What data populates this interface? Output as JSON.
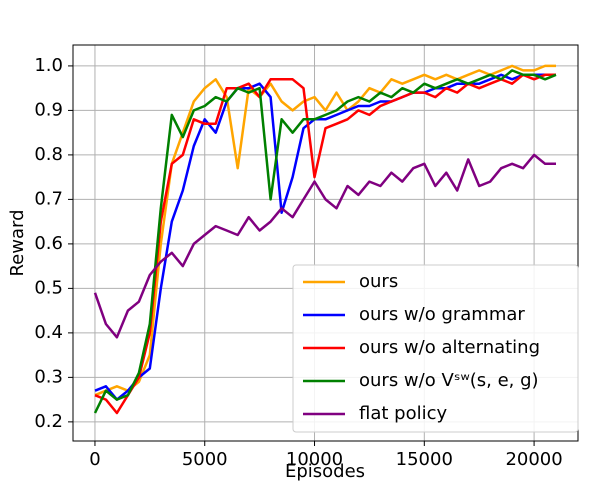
{
  "chart_data": {
    "type": "line",
    "x_label": "Episodes",
    "y_label": "Reward",
    "x": [
      0,
      500,
      1000,
      1500,
      2000,
      2500,
      3000,
      3500,
      4000,
      4500,
      5000,
      5500,
      6000,
      6500,
      7000,
      7500,
      8000,
      8500,
      9000,
      9500,
      10000,
      10500,
      11000,
      11500,
      12000,
      12500,
      13000,
      13500,
      14000,
      14500,
      15000,
      15500,
      16000,
      16500,
      17000,
      17500,
      18000,
      18500,
      19000,
      19500,
      20000,
      20500,
      21000
    ],
    "series": [
      {
        "name": "ours",
        "color": "#ffa500",
        "values": [
          0.26,
          0.27,
          0.28,
          0.27,
          0.29,
          0.35,
          0.6,
          0.78,
          0.85,
          0.92,
          0.95,
          0.97,
          0.93,
          0.77,
          0.95,
          0.93,
          0.96,
          0.92,
          0.9,
          0.92,
          0.93,
          0.9,
          0.94,
          0.9,
          0.92,
          0.95,
          0.94,
          0.97,
          0.96,
          0.97,
          0.98,
          0.97,
          0.98,
          0.97,
          0.98,
          0.99,
          0.98,
          0.99,
          1.0,
          0.99,
          0.99,
          1.0,
          1.0
        ]
      },
      {
        "name": "ours w/o grammar",
        "color": "#0000ff",
        "values": [
          0.27,
          0.28,
          0.25,
          0.27,
          0.3,
          0.32,
          0.5,
          0.65,
          0.72,
          0.82,
          0.88,
          0.85,
          0.92,
          0.95,
          0.95,
          0.96,
          0.93,
          0.67,
          0.75,
          0.86,
          0.88,
          0.88,
          0.89,
          0.9,
          0.91,
          0.91,
          0.92,
          0.92,
          0.93,
          0.94,
          0.94,
          0.95,
          0.95,
          0.96,
          0.96,
          0.96,
          0.97,
          0.98,
          0.97,
          0.98,
          0.98,
          0.98,
          0.98
        ]
      },
      {
        "name": "ours w/o alternating",
        "color": "#ff0000",
        "values": [
          0.26,
          0.25,
          0.22,
          0.26,
          0.3,
          0.4,
          0.65,
          0.78,
          0.8,
          0.88,
          0.87,
          0.87,
          0.95,
          0.95,
          0.96,
          0.93,
          0.97,
          0.97,
          0.97,
          0.95,
          0.75,
          0.86,
          0.87,
          0.88,
          0.9,
          0.89,
          0.91,
          0.92,
          0.93,
          0.94,
          0.94,
          0.93,
          0.95,
          0.94,
          0.96,
          0.95,
          0.96,
          0.97,
          0.96,
          0.98,
          0.97,
          0.98,
          0.98
        ]
      },
      {
        "name": "ours w/o Vˢʷ(s, e, g)",
        "color": "#008000",
        "values": [
          0.22,
          0.27,
          0.25,
          0.26,
          0.31,
          0.42,
          0.68,
          0.89,
          0.84,
          0.9,
          0.91,
          0.93,
          0.92,
          0.95,
          0.94,
          0.95,
          0.7,
          0.88,
          0.85,
          0.88,
          0.88,
          0.89,
          0.9,
          0.92,
          0.93,
          0.92,
          0.94,
          0.93,
          0.95,
          0.94,
          0.96,
          0.95,
          0.96,
          0.97,
          0.96,
          0.97,
          0.98,
          0.97,
          0.99,
          0.98,
          0.98,
          0.97,
          0.98
        ]
      },
      {
        "name": "flat policy",
        "color": "#800080",
        "values": [
          0.49,
          0.42,
          0.39,
          0.45,
          0.47,
          0.53,
          0.56,
          0.58,
          0.55,
          0.6,
          0.62,
          0.64,
          0.63,
          0.62,
          0.66,
          0.63,
          0.65,
          0.68,
          0.66,
          0.7,
          0.74,
          0.7,
          0.68,
          0.73,
          0.71,
          0.74,
          0.73,
          0.76,
          0.74,
          0.77,
          0.78,
          0.73,
          0.76,
          0.72,
          0.79,
          0.73,
          0.74,
          0.77,
          0.78,
          0.77,
          0.8,
          0.78,
          0.78
        ]
      }
    ],
    "xlim": [
      -1000,
      22000
    ],
    "ylim": [
      0.157,
      1.047
    ],
    "xticks": [
      0,
      5000,
      10000,
      15000,
      20000
    ],
    "yticks": [
      0.2,
      0.3,
      0.4,
      0.5,
      0.6,
      0.7,
      0.8,
      0.9,
      {
        "value": 1,
        "label": "1.0"
      }
    ],
    "grid": true,
    "legend": "lower right"
  }
}
